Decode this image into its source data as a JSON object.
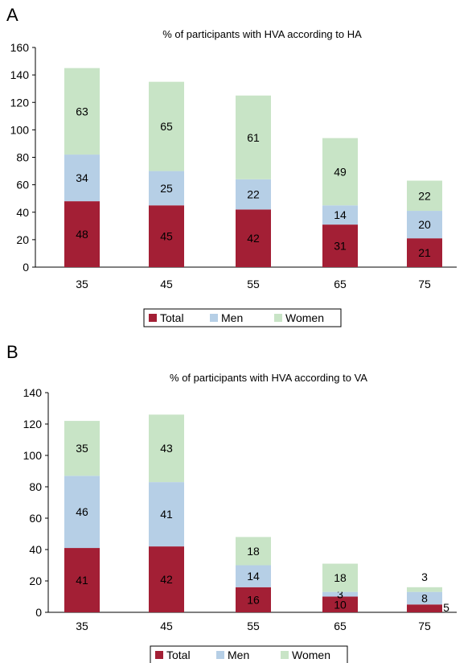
{
  "panels": {
    "a_letter": "A",
    "b_letter": "B"
  },
  "chart_data": [
    {
      "type": "bar",
      "stacked": true,
      "title": "% of participants with HVA according to HA",
      "xlabel": "",
      "ylabel": "",
      "categories": [
        "35",
        "45",
        "55",
        "65",
        "75"
      ],
      "series": [
        {
          "name": "Total",
          "color": "#a31f35",
          "values": [
            48,
            45,
            42,
            31,
            21
          ]
        },
        {
          "name": "Men",
          "color": "#b6cfe6",
          "values": [
            34,
            25,
            22,
            14,
            20
          ]
        },
        {
          "name": "Women",
          "color": "#c8e4c6",
          "values": [
            63,
            65,
            61,
            49,
            22
          ]
        }
      ],
      "ylim": [
        0,
        160
      ],
      "yticks": [
        0,
        20,
        40,
        60,
        80,
        100,
        120,
        140,
        160
      ],
      "grid": false,
      "legend": "bottom"
    },
    {
      "type": "bar",
      "stacked": true,
      "title": "% of participants with HVA according to VA",
      "xlabel": "",
      "ylabel": "",
      "categories": [
        "35",
        "45",
        "55",
        "65",
        "75"
      ],
      "series": [
        {
          "name": "Total",
          "color": "#a31f35",
          "values": [
            41,
            42,
            16,
            10,
            5
          ]
        },
        {
          "name": "Men",
          "color": "#b6cfe6",
          "values": [
            46,
            41,
            14,
            3,
            8
          ]
        },
        {
          "name": "Women",
          "color": "#c8e4c6",
          "values": [
            35,
            43,
            18,
            18,
            3
          ]
        }
      ],
      "ylim": [
        0,
        140
      ],
      "yticks": [
        0,
        20,
        40,
        60,
        80,
        100,
        120,
        140
      ],
      "grid": false,
      "legend": "bottom"
    }
  ]
}
